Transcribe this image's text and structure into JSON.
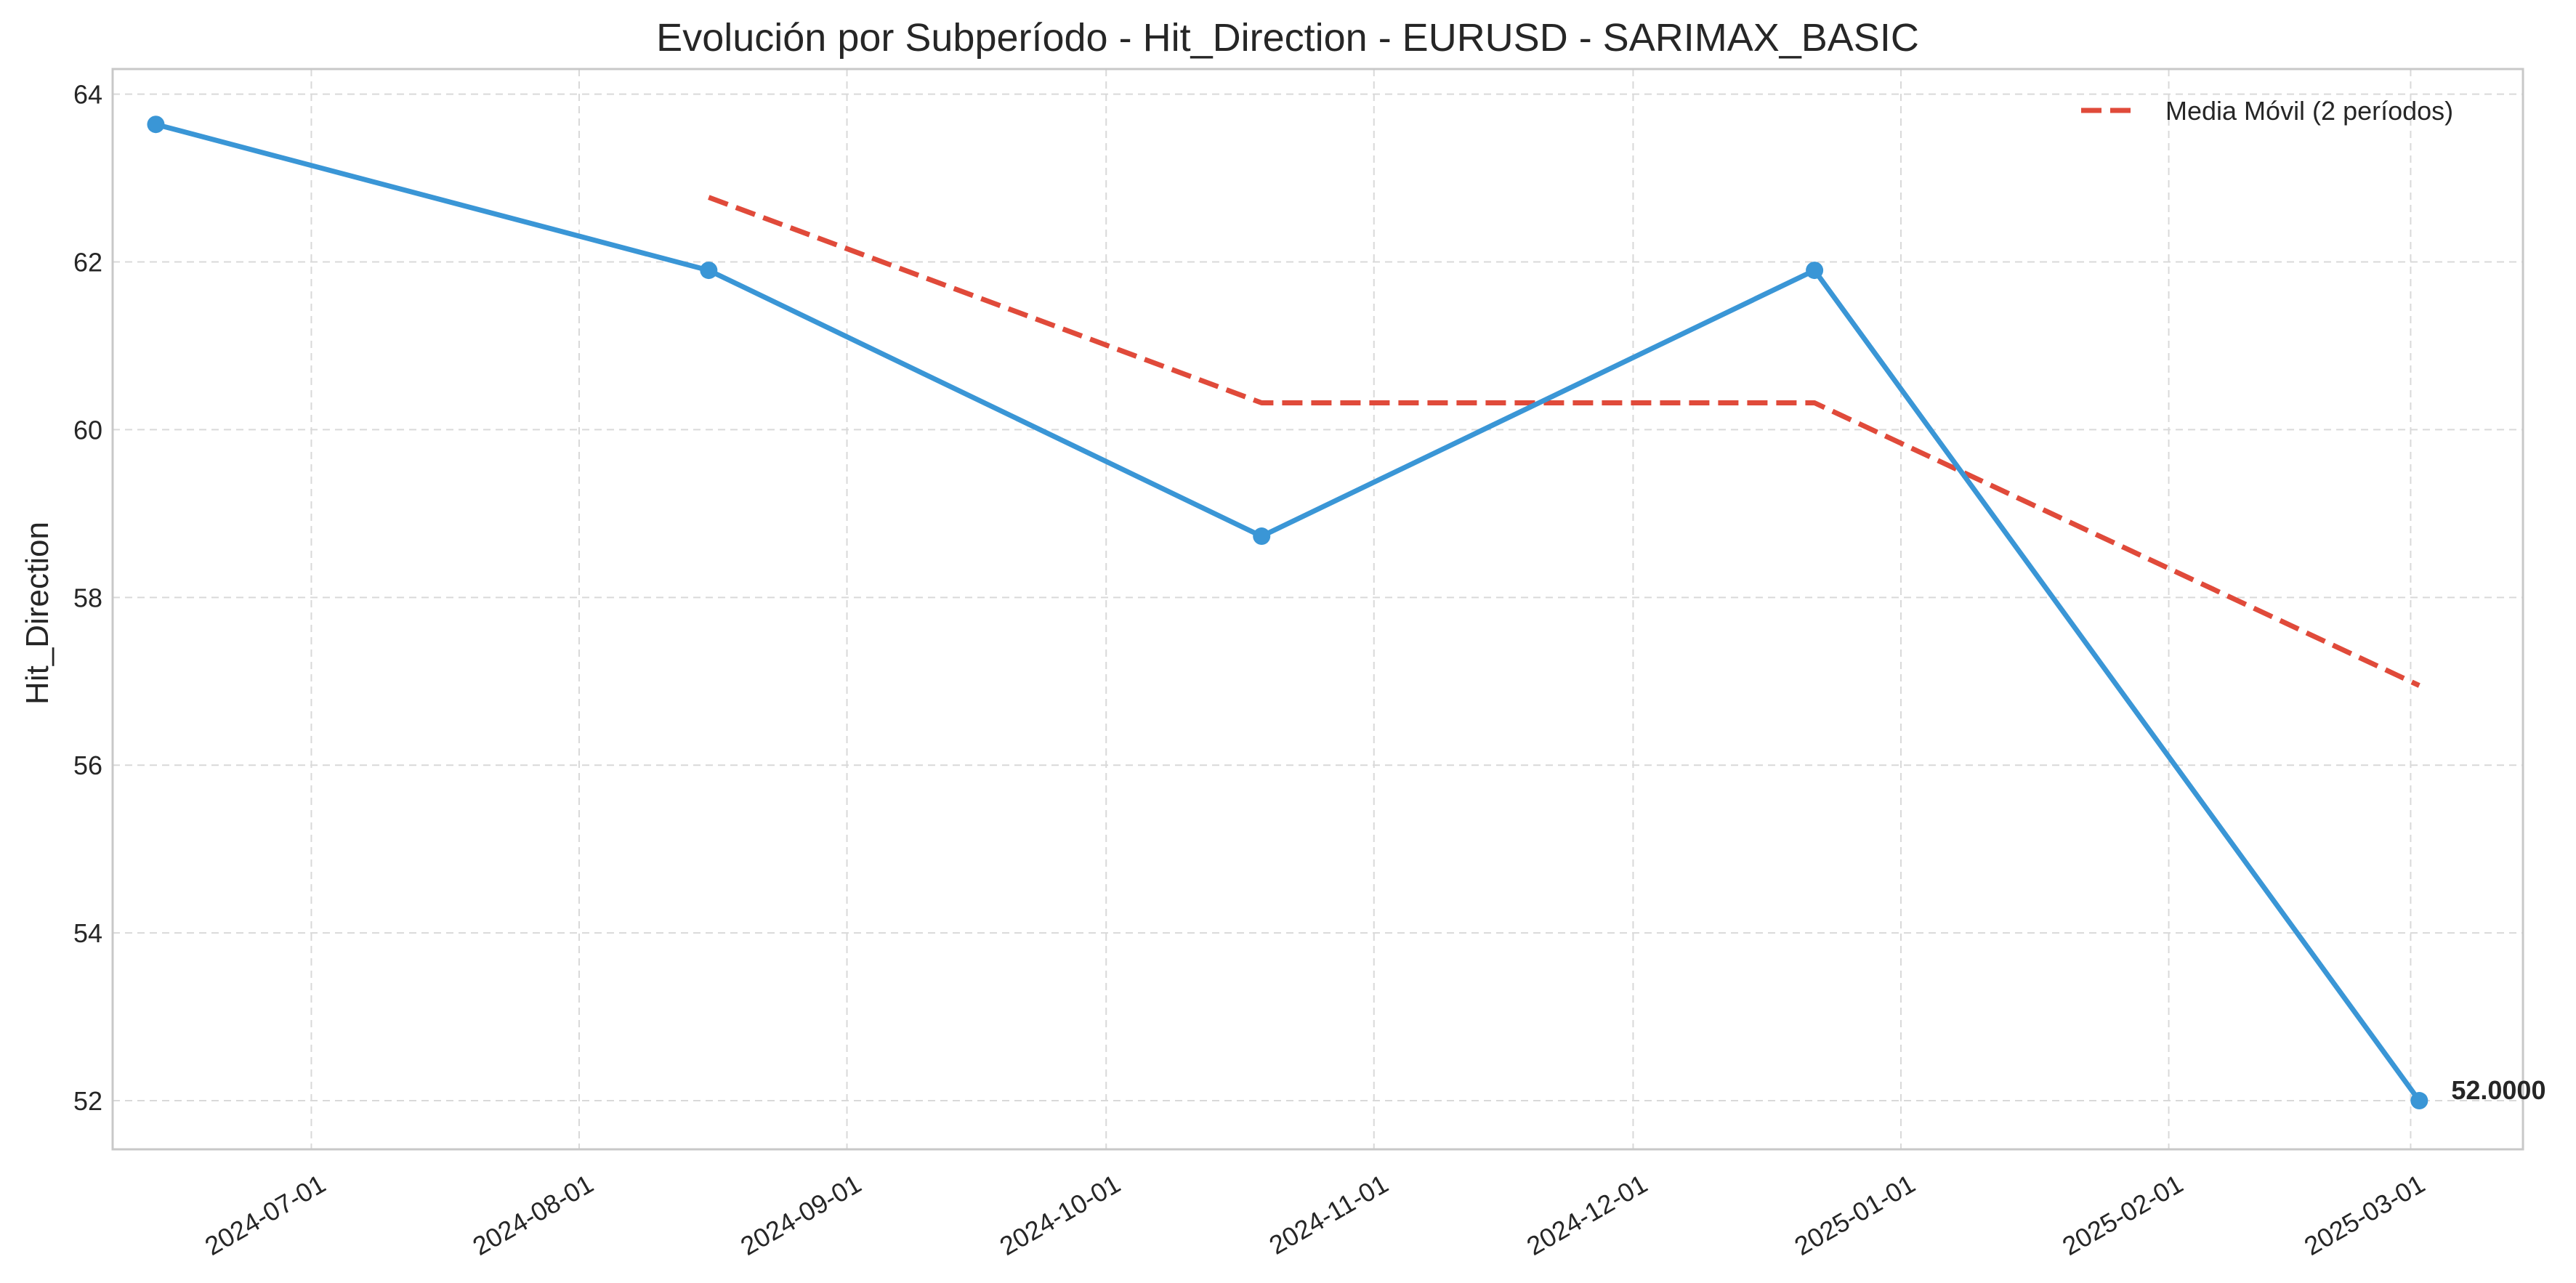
{
  "chart_data": {
    "type": "line",
    "title": "Evolución por Subperíodo - Hit_Direction - EURUSD - SARIMAX_BASIC",
    "xlabel": "",
    "ylabel": "Hit_Direction",
    "x_ticks": [
      "2024-07-01",
      "2024-08-01",
      "2024-09-01",
      "2024-10-01",
      "2024-11-01",
      "2024-12-01",
      "2025-01-01",
      "2025-02-01",
      "2025-03-01"
    ],
    "y_ticks": [
      52,
      54,
      56,
      58,
      60,
      62,
      64
    ],
    "xlim": [
      "2024-06-08",
      "2025-03-14"
    ],
    "ylim": [
      51.42,
      64.3
    ],
    "grid": true,
    "legend_position": "top-right",
    "series": [
      {
        "name": "",
        "style": "solid-markers",
        "color": "#3a96d6",
        "points": [
          {
            "x": "2024-06-13",
            "y": 63.64
          },
          {
            "x": "2024-08-16",
            "y": 61.9
          },
          {
            "x": "2024-10-19",
            "y": 58.73
          },
          {
            "x": "2024-12-22",
            "y": 61.9
          },
          {
            "x": "2025-03-02",
            "y": 52.0
          }
        ]
      },
      {
        "name": "Media Móvil (2 períodos)",
        "style": "dashed",
        "color": "#e04a3a",
        "points": [
          {
            "x": "2024-08-16",
            "y": 62.77
          },
          {
            "x": "2024-10-19",
            "y": 60.32
          },
          {
            "x": "2024-12-22",
            "y": 60.32
          },
          {
            "x": "2025-03-02",
            "y": 56.95
          }
        ]
      }
    ],
    "annotations": [
      {
        "text": "52.0000",
        "x": "2025-03-02",
        "y": 52.0
      }
    ]
  }
}
